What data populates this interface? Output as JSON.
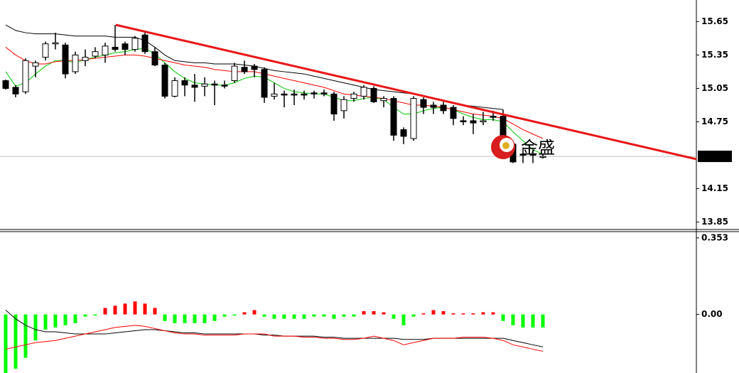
{
  "chart_data": [
    {
      "type": "candlestick",
      "open": [
        15.12,
        15.06,
        15.02,
        15.25,
        15.33,
        15.45,
        15.44,
        15.2,
        15.3,
        15.34,
        15.35,
        15.42,
        15.45,
        15.4,
        15.53,
        15.38,
        15.26,
        14.98,
        15.12,
        15.08,
        15.07,
        15.09,
        15.08,
        15.12,
        15.24,
        15.25,
        15.22,
        14.98,
        15.0,
        15.0,
        15.0,
        15.01,
        15.01,
        15.0,
        14.85,
        14.96,
        14.98,
        15.05,
        14.94,
        14.96,
        14.68,
        14.6,
        14.95,
        14.9,
        14.9,
        14.88,
        14.76,
        14.76,
        14.75,
        14.8,
        14.8,
        14.55,
        14.46,
        14.46,
        14.44
      ],
      "high": [
        15.13,
        15.08,
        15.32,
        15.3,
        15.47,
        15.55,
        15.46,
        15.38,
        15.4,
        15.42,
        15.46,
        15.62,
        15.47,
        15.52,
        15.55,
        15.42,
        15.28,
        15.15,
        15.15,
        15.18,
        15.15,
        15.12,
        15.12,
        15.28,
        15.3,
        15.27,
        15.24,
        15.1,
        15.03,
        15.04,
        15.03,
        15.03,
        15.04,
        15.02,
        14.98,
        15.02,
        15.08,
        15.07,
        14.98,
        14.98,
        14.7,
        14.98,
        14.97,
        14.93,
        14.93,
        14.9,
        14.8,
        14.82,
        14.84,
        14.85,
        14.86,
        14.57,
        14.52,
        14.5,
        14.46
      ],
      "low": [
        15.04,
        14.97,
        15.0,
        15.15,
        15.3,
        15.4,
        15.14,
        15.18,
        15.25,
        15.32,
        15.28,
        15.38,
        15.35,
        15.38,
        15.36,
        15.25,
        14.96,
        14.97,
        14.98,
        14.93,
        14.98,
        14.9,
        15.05,
        15.1,
        15.18,
        15.15,
        14.92,
        14.95,
        14.88,
        14.9,
        14.95,
        14.96,
        14.98,
        14.76,
        14.78,
        14.93,
        14.95,
        14.92,
        14.88,
        14.58,
        14.55,
        14.58,
        14.82,
        14.82,
        14.82,
        14.72,
        14.72,
        14.64,
        14.72,
        14.76,
        14.5,
        14.38,
        14.38,
        14.38,
        14.42
      ],
      "close": [
        15.05,
        15.0,
        15.3,
        15.28,
        15.45,
        15.46,
        15.18,
        15.35,
        15.33,
        15.38,
        15.43,
        15.4,
        15.4,
        15.5,
        15.38,
        15.26,
        14.98,
        15.12,
        15.08,
        15.06,
        15.09,
        15.08,
        15.07,
        15.25,
        15.2,
        15.22,
        14.97,
        15.0,
        14.99,
        14.99,
        14.99,
        15.0,
        15.0,
        14.82,
        14.95,
        15.0,
        15.06,
        14.93,
        14.96,
        14.63,
        14.62,
        14.96,
        14.88,
        14.88,
        14.85,
        14.78,
        14.75,
        14.74,
        14.76,
        14.79,
        14.55,
        14.39,
        14.45,
        14.45,
        14.44
      ],
      "series": [
        {
          "color": "#00c800",
          "values": [
            15.2,
            15.07,
            15.1,
            15.18,
            15.25,
            15.3,
            15.3,
            15.28,
            15.31,
            15.33,
            15.35,
            15.37,
            15.38,
            15.4,
            15.41,
            15.36,
            15.28,
            15.2,
            15.14,
            15.1,
            15.09,
            15.08,
            15.08,
            15.1,
            15.14,
            15.16,
            15.15,
            15.1,
            15.05,
            15.02,
            15.01,
            15,
            15,
            14.97,
            14.94,
            14.94,
            14.96,
            14.97,
            14.95,
            14.88,
            14.82,
            14.82,
            14.85,
            14.87,
            14.88,
            14.86,
            14.82,
            14.79,
            14.77,
            14.77,
            14.75,
            14.66,
            14.58,
            14.5,
            14.46
          ]
        },
        {
          "color": "#ff0000",
          "values": [
            15.42,
            15.35,
            15.3,
            15.27,
            15.27,
            15.29,
            15.3,
            15.3,
            15.31,
            15.32,
            15.33,
            15.34,
            15.35,
            15.35,
            15.34,
            15.32,
            15.3,
            15.28,
            15.26,
            15.25,
            15.24,
            15.22,
            15.21,
            15.2,
            15.2,
            15.2,
            15.18,
            15.16,
            15.14,
            15.12,
            15.1,
            15.08,
            15.06,
            15.03,
            15,
            14.99,
            14.98,
            14.97,
            14.96,
            14.94,
            14.92,
            14.9,
            14.9,
            14.89,
            14.88,
            14.86,
            14.84,
            14.82,
            14.81,
            14.8,
            14.78,
            14.73,
            14.68,
            14.64,
            14.6
          ]
        },
        {
          "color": "#000000",
          "values": [
            15.62,
            15.57,
            15.55,
            15.54,
            15.54,
            15.54,
            15.53,
            15.52,
            15.52,
            15.52,
            15.52,
            15.51,
            15.51,
            15.51,
            15.48,
            15.42,
            15.35,
            15.3,
            15.29,
            15.28,
            15.28,
            15.27,
            15.27,
            15.27,
            15.26,
            15.25,
            15.23,
            15.21,
            15.2,
            15.19,
            15.18,
            15.16,
            15.14,
            15.12,
            15.1,
            15.08,
            15.06,
            15.04,
            15.03,
            15.02,
            15.01,
            15,
            14.98,
            14.96,
            14.94,
            14.92,
            14.9,
            14.89,
            14.88,
            14.87,
            14.86,
            null,
            null,
            null,
            null
          ]
        }
      ],
      "ylim": [
        13.79,
        15.78
      ],
      "yticks": [
        15.65,
        15.35,
        15.05,
        14.75,
        14.15,
        13.85
      ],
      "last_price": 14.44,
      "watermark": "金盛"
    },
    {
      "type": "bar",
      "values": [
        -0.27,
        -0.25,
        -0.2,
        -0.12,
        -0.07,
        -0.06,
        -0.05,
        -0.04,
        -0.01,
        -0.005,
        0.03,
        0.04,
        0.05,
        0.06,
        0.05,
        0.03,
        -0.03,
        -0.04,
        -0.04,
        -0.04,
        -0.04,
        -0.03,
        -0.01,
        -0.005,
        0.01,
        0.02,
        -0.01,
        -0.02,
        -0.02,
        -0.02,
        -0.02,
        -0.01,
        -0.01,
        -0.02,
        -0.01,
        -0.01,
        0.015,
        0.015,
        0.01,
        -0.02,
        -0.05,
        -0.01,
        0.005,
        0.02,
        0.015,
        0.005,
        0.005,
        0.005,
        0.01,
        0.01,
        -0.03,
        -0.05,
        -0.06,
        -0.06,
        -0.06
      ],
      "positive_color": "#ff0000",
      "negative_color": "#00ff00",
      "series": [
        {
          "color": "#000000",
          "values": [
            0.02,
            -0.02,
            -0.05,
            -0.07,
            -0.08,
            -0.08,
            -0.085,
            -0.09,
            -0.09,
            -0.09,
            -0.09,
            -0.085,
            -0.08,
            -0.075,
            -0.07,
            -0.07,
            -0.075,
            -0.08,
            -0.085,
            -0.085,
            -0.09,
            -0.09,
            -0.09,
            -0.09,
            -0.09,
            -0.09,
            -0.095,
            -0.095,
            -0.1,
            -0.1,
            -0.1,
            -0.1,
            -0.105,
            -0.105,
            -0.11,
            -0.11,
            -0.11,
            -0.11,
            -0.11,
            -0.11,
            -0.115,
            -0.115,
            -0.115,
            -0.11,
            -0.11,
            -0.11,
            -0.11,
            -0.11,
            -0.11,
            -0.11,
            -0.11,
            -0.12,
            -0.13,
            -0.14,
            -0.15
          ]
        },
        {
          "color": "#ff0000",
          "values": [
            -0.16,
            -0.15,
            -0.14,
            -0.13,
            -0.125,
            -0.12,
            -0.11,
            -0.1,
            -0.09,
            -0.08,
            -0.07,
            -0.06,
            -0.055,
            -0.05,
            -0.055,
            -0.065,
            -0.075,
            -0.085,
            -0.09,
            -0.09,
            -0.095,
            -0.095,
            -0.095,
            -0.095,
            -0.09,
            -0.09,
            -0.09,
            -0.1,
            -0.1,
            -0.1,
            -0.105,
            -0.105,
            -0.11,
            -0.11,
            -0.115,
            -0.115,
            -0.11,
            -0.1,
            -0.11,
            -0.12,
            -0.14,
            -0.13,
            -0.12,
            -0.11,
            -0.11,
            -0.11,
            -0.105,
            -0.105,
            -0.105,
            -0.11,
            -0.12,
            -0.14,
            -0.15,
            -0.16,
            -0.17
          ]
        }
      ],
      "ylim": [
        -0.27,
        0.382
      ],
      "yticks": [
        0.353,
        {
          "value": 0,
          "label": "0.00"
        }
      ]
    }
  ]
}
